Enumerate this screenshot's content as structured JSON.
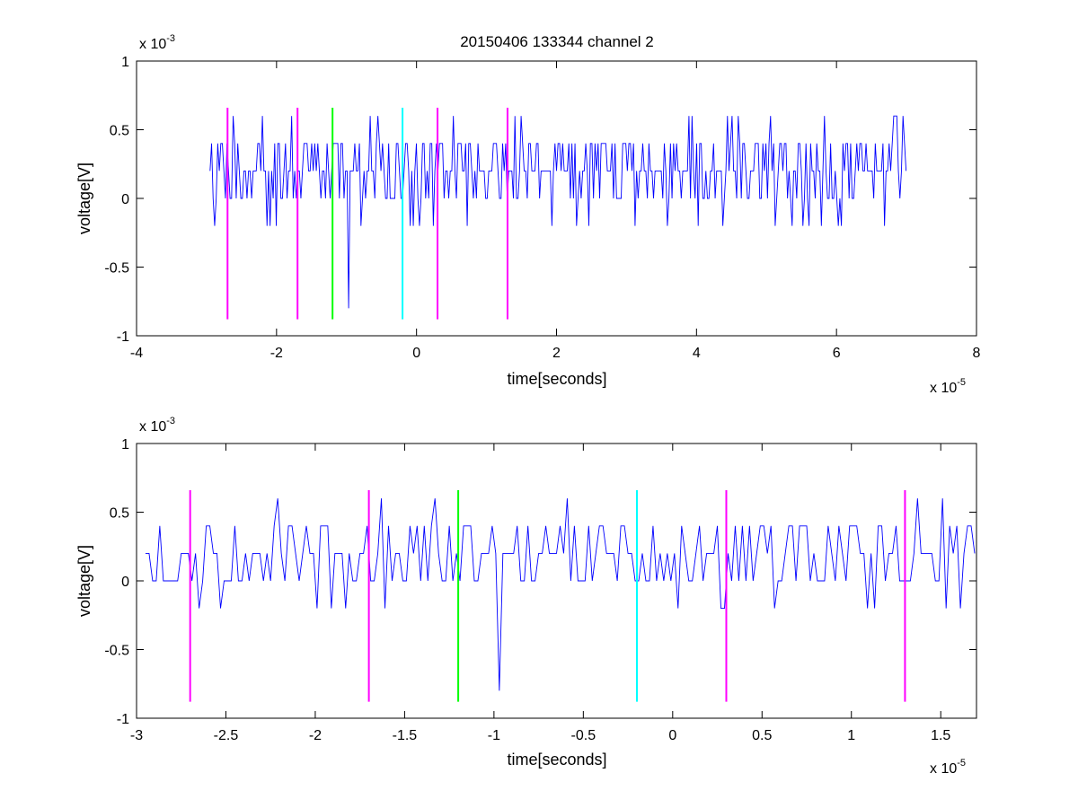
{
  "chart_data": [
    {
      "type": "line",
      "title": "20150406 133344 channel 2",
      "xlabel": "time[seconds]",
      "ylabel": "voltage[V]",
      "x_multiplier_label": "x 10",
      "x_multiplier_exp": "-5",
      "y_multiplier_label": "x 10",
      "y_multiplier_exp": "-3",
      "x_scale": 1e-05,
      "y_scale": 0.001,
      "xlim": [
        -4,
        8
      ],
      "ylim": [
        -1,
        1
      ],
      "xticks": [
        "-4",
        "-2",
        "0",
        "2",
        "4",
        "6",
        "8"
      ],
      "yticks": [
        "-1",
        "-0.5",
        "0",
        "0.5",
        "1"
      ],
      "grid": false,
      "series": [
        {
          "type": "signal",
          "color": "#0000ff",
          "x_start": -2.95,
          "x_end": 7.0,
          "levels": [
            -0.8,
            -0.4,
            -0.2,
            0,
            0.2,
            0.4,
            0.6
          ],
          "baseline": 0.2
        },
        {
          "type": "markers",
          "color": "#ff00ff",
          "x": [
            -2.7,
            -1.7,
            0.3,
            1.3
          ],
          "y_range": [
            -0.88,
            0.66
          ]
        },
        {
          "type": "markers",
          "color": "#00ff00",
          "x": [
            -1.2
          ],
          "y_range": [
            -0.88,
            0.66
          ]
        },
        {
          "type": "markers",
          "color": "#00ffff",
          "x": [
            -0.2
          ],
          "y_range": [
            -0.88,
            0.66
          ]
        }
      ]
    },
    {
      "type": "line",
      "title": "",
      "xlabel": "time[seconds]",
      "ylabel": "voltage[V]",
      "x_multiplier_label": "x 10",
      "x_multiplier_exp": "-5",
      "y_multiplier_label": "x 10",
      "y_multiplier_exp": "-3",
      "x_scale": 1e-05,
      "y_scale": 0.001,
      "xlim": [
        -3.0,
        1.7
      ],
      "ylim": [
        -1,
        1
      ],
      "xticks": [
        "-3",
        "-2.5",
        "-2",
        "-1.5",
        "-1",
        "-0.5",
        "0",
        "0.5",
        "1",
        "1.5"
      ],
      "yticks": [
        "-1",
        "-0.5",
        "0",
        "0.5",
        "1"
      ],
      "grid": false,
      "series": [
        {
          "type": "signal",
          "color": "#0000ff",
          "x_start": -2.95,
          "x_end": 1.7,
          "levels": [
            -0.8,
            -0.2,
            0,
            0.2,
            0.4,
            0.6
          ],
          "baseline": 0.2
        },
        {
          "type": "markers",
          "color": "#ff00ff",
          "x": [
            -2.7,
            -1.7,
            0.3,
            1.3
          ],
          "y_range": [
            -0.88,
            0.66
          ]
        },
        {
          "type": "markers",
          "color": "#00ff00",
          "x": [
            -1.2
          ],
          "y_range": [
            -0.88,
            0.66
          ]
        },
        {
          "type": "markers",
          "color": "#00ffff",
          "x": [
            -0.2
          ],
          "y_range": [
            -0.88,
            0.66
          ]
        }
      ]
    }
  ]
}
